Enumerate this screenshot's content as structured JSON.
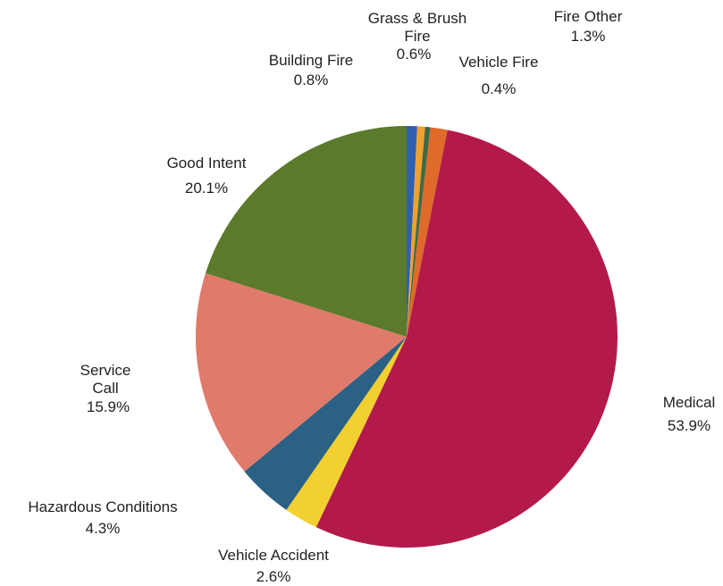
{
  "chart_data": {
    "type": "pie",
    "title": "",
    "slices": [
      {
        "label": "Building Fire",
        "value": 0.8,
        "value_label": "0.8%",
        "color": "#2e5fb0"
      },
      {
        "label": "Grass & Brush Fire",
        "value": 0.6,
        "value_label": "0.6%",
        "color": "#f0a030"
      },
      {
        "label": "Vehicle Fire",
        "value": 0.4,
        "value_label": "0.4%",
        "color": "#3e6b45"
      },
      {
        "label": "Fire Other",
        "value": 1.3,
        "value_label": "1.3%",
        "color": "#e06a2a"
      },
      {
        "label": "Medical",
        "value": 53.9,
        "value_label": "53.9%",
        "color": "#b31a4a"
      },
      {
        "label": "Vehicle Accident",
        "value": 2.6,
        "value_label": "2.6%",
        "color": "#f2d030"
      },
      {
        "label": "Hazardous Conditions",
        "value": 4.3,
        "value_label": "4.3%",
        "color": "#2b6184"
      },
      {
        "label": "Service Call",
        "value": 15.9,
        "value_label": "15.9%",
        "color": "#e07a6a"
      },
      {
        "label": "Good Intent",
        "value": 20.1,
        "value_label": "20.1%",
        "color": "#5b7a2c"
      }
    ],
    "start_angle": "top",
    "direction": "clockwise",
    "legend": "none"
  }
}
